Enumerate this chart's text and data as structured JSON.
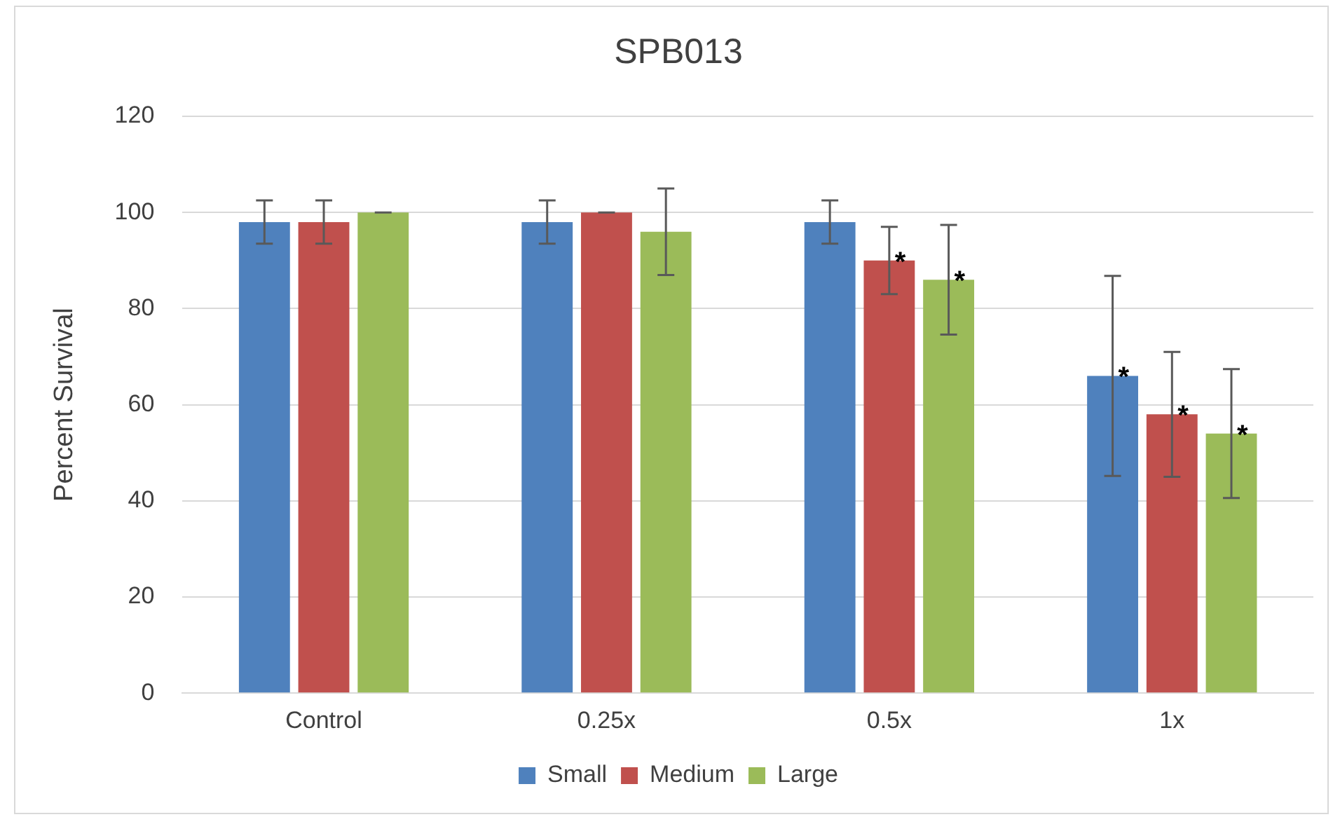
{
  "chart_data": {
    "type": "bar",
    "title": "SPB013",
    "ylabel": "Percent Survival",
    "categories": [
      "Control",
      "0.25x",
      "0.5x",
      "1x"
    ],
    "series": [
      {
        "name": "Small",
        "color": "#4f81bd",
        "values": [
          98,
          98,
          98,
          66
        ],
        "errors": [
          4.5,
          4.5,
          4.5,
          20.8
        ],
        "value_labels": [
          null,
          null,
          null,
          "*"
        ]
      },
      {
        "name": "Medium",
        "color": "#c0504d",
        "values": [
          98,
          100,
          90,
          58
        ],
        "errors": [
          4.5,
          0,
          7,
          13
        ],
        "value_labels": [
          null,
          null,
          "*",
          "*"
        ]
      },
      {
        "name": "Large",
        "color": "#9bbb59",
        "values": [
          100,
          96,
          86,
          54
        ],
        "errors": [
          0,
          9,
          11.4,
          13.4
        ],
        "value_labels": [
          null,
          null,
          "*",
          "*"
        ]
      }
    ],
    "ylim": [
      0,
      120
    ],
    "yticks": [
      0,
      20,
      40,
      60,
      80,
      100,
      120
    ],
    "grid": "y",
    "legend": "bottom"
  }
}
